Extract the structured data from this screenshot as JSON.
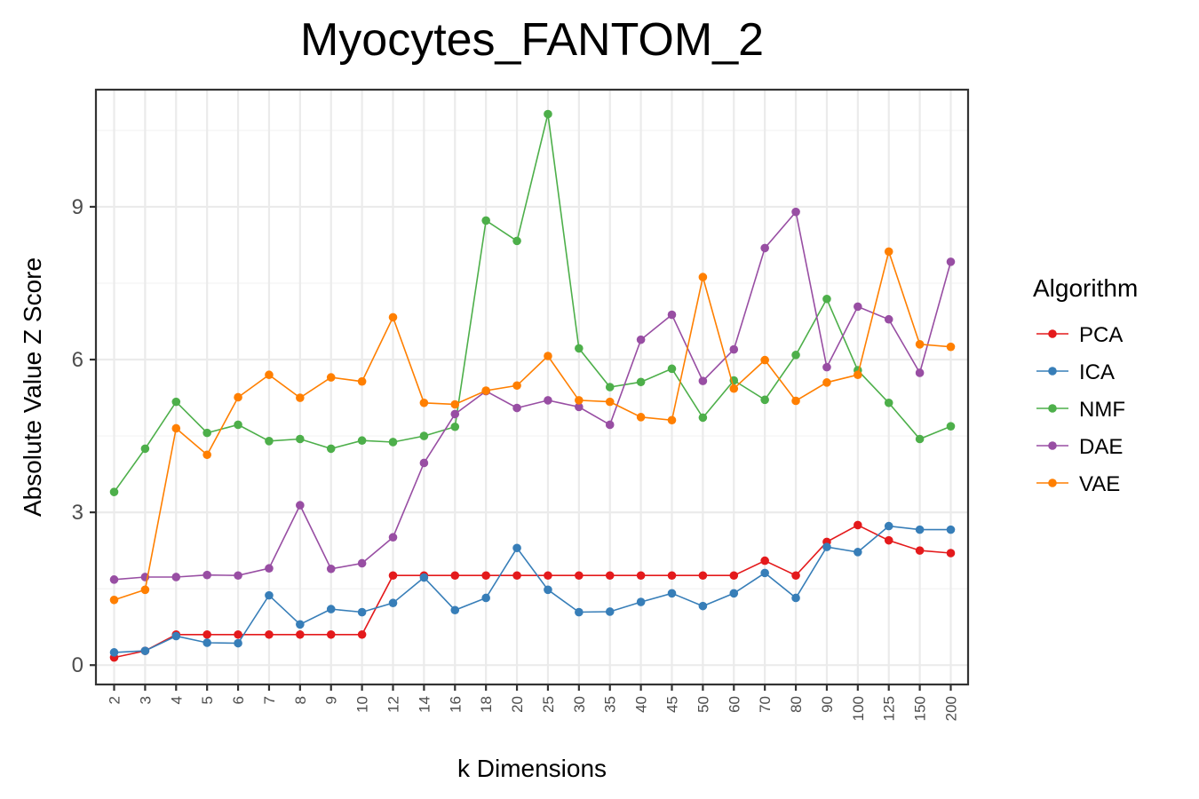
{
  "chart_data": {
    "type": "line",
    "title": "Myocytes_FANTOM_2",
    "xlabel": "k Dimensions",
    "ylabel": "Absolute Value Z Score",
    "categories": [
      "2",
      "3",
      "4",
      "5",
      "6",
      "7",
      "8",
      "9",
      "10",
      "12",
      "14",
      "16",
      "18",
      "20",
      "25",
      "30",
      "35",
      "40",
      "45",
      "50",
      "60",
      "70",
      "80",
      "90",
      "100",
      "125",
      "150",
      "200"
    ],
    "ylim": [
      -0.38,
      11.3
    ],
    "yticks": [
      0,
      3,
      6,
      9
    ],
    "ytick_labels": [
      "0",
      "3",
      "6",
      "9"
    ],
    "grid": true,
    "legend_title": "Algorithm",
    "legend_position": "right",
    "series": [
      {
        "name": "PCA",
        "color": "#e41a1c",
        "values": [
          0.15,
          0.28,
          0.6,
          0.6,
          0.6,
          0.6,
          0.6,
          0.6,
          0.6,
          1.76,
          1.76,
          1.76,
          1.76,
          1.76,
          1.76,
          1.76,
          1.76,
          1.76,
          1.76,
          1.76,
          1.76,
          2.05,
          1.76,
          2.42,
          2.75,
          2.45,
          2.25,
          2.2
        ]
      },
      {
        "name": "ICA",
        "color": "#377eb8",
        "values": [
          0.25,
          0.28,
          0.57,
          0.44,
          0.43,
          1.37,
          0.8,
          1.1,
          1.04,
          1.22,
          1.72,
          1.08,
          1.32,
          2.3,
          1.48,
          1.04,
          1.05,
          1.24,
          1.41,
          1.16,
          1.41,
          1.81,
          1.32,
          2.32,
          2.22,
          2.73,
          2.66,
          2.66
        ]
      },
      {
        "name": "NMF",
        "color": "#4daf4a",
        "values": [
          3.4,
          4.25,
          5.17,
          4.56,
          4.72,
          4.4,
          4.44,
          4.25,
          4.41,
          4.38,
          4.5,
          4.68,
          8.73,
          8.33,
          10.82,
          6.22,
          5.46,
          5.56,
          5.82,
          4.86,
          5.59,
          5.21,
          6.09,
          7.19,
          5.79,
          5.15,
          4.44,
          4.69
        ]
      },
      {
        "name": "DAE",
        "color": "#984ea3",
        "values": [
          1.68,
          1.73,
          1.73,
          1.77,
          1.76,
          1.9,
          3.14,
          1.89,
          2.0,
          2.51,
          3.97,
          4.93,
          5.38,
          5.05,
          5.2,
          5.07,
          4.72,
          6.39,
          6.88,
          5.58,
          6.2,
          8.19,
          8.9,
          5.85,
          7.04,
          6.79,
          5.74,
          7.92
        ]
      },
      {
        "name": "VAE",
        "color": "#ff7f00",
        "values": [
          1.28,
          1.48,
          4.65,
          4.13,
          5.26,
          5.7,
          5.25,
          5.65,
          5.57,
          6.83,
          5.15,
          5.12,
          5.39,
          5.49,
          6.07,
          5.2,
          5.17,
          4.87,
          4.81,
          7.62,
          5.43,
          5.99,
          5.19,
          5.55,
          5.7,
          8.12,
          6.3,
          6.25
        ]
      }
    ]
  }
}
